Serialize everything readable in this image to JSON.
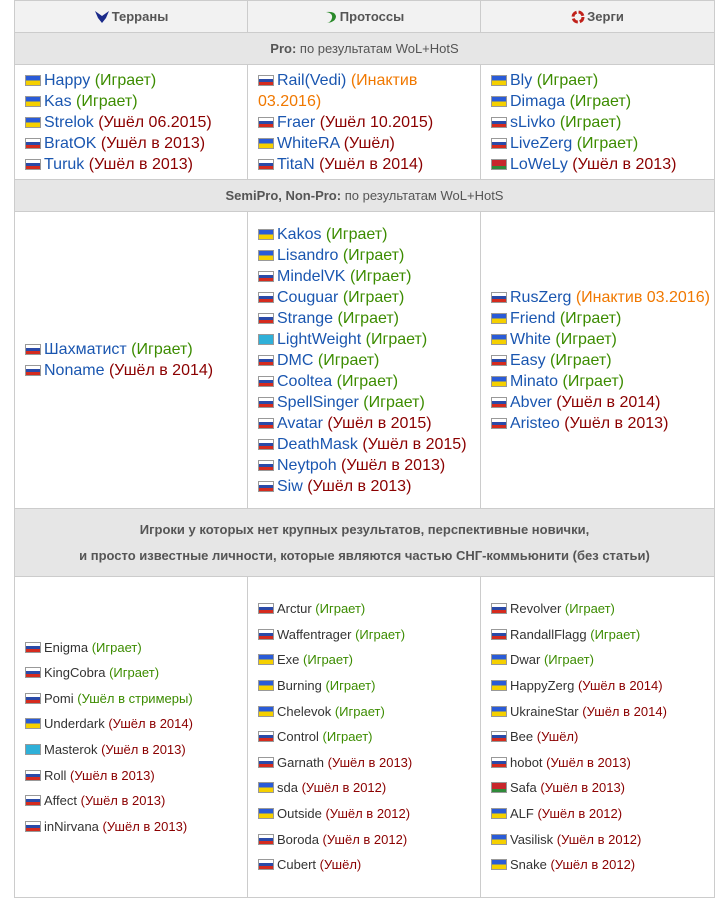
{
  "header": {
    "columns": [
      {
        "name": "Терраны"
      },
      {
        "name": "Протоссы"
      },
      {
        "name": "Зерги"
      }
    ]
  },
  "sections": [
    {
      "label": "Pro:",
      "title": "по результатам WoL+HotS",
      "columns": [
        [
          {
            "name": "Happy",
            "status": "(Играет)",
            "flag": "ua",
            "color": "#3c8c00"
          },
          {
            "name": "Kas",
            "status": "(Играет)",
            "flag": "ua",
            "color": "#3c8c00"
          },
          {
            "name": "Strelok",
            "status": "(Ушёл 06.2015)",
            "flag": "ua",
            "color": "#8b0000"
          },
          {
            "name": "BratOK",
            "status": "(Ушёл в 2013)",
            "flag": "ru",
            "color": "#8b0000"
          },
          {
            "name": "Turuk",
            "status": "(Ушёл в 2013)",
            "flag": "ru",
            "color": "#8b0000"
          }
        ],
        [
          {
            "name": "Rail(Vedi)",
            "status": "(Инактив 03.2016)",
            "flag": "ru",
            "color": "#f07800"
          },
          {
            "name": "Fraer",
            "status": "(Ушёл 10.2015)",
            "flag": "ru",
            "color": "#8b0000"
          },
          {
            "name": "WhiteRA",
            "status": "(Ушёл)",
            "flag": "ua",
            "color": "#8b0000"
          },
          {
            "name": "TitaN",
            "status": "(Ушёл в 2014)",
            "flag": "ru",
            "color": "#8b0000"
          }
        ],
        [
          {
            "name": "Bly",
            "status": "(Играет)",
            "flag": "ua",
            "color": "#3c8c00"
          },
          {
            "name": "Dimaga",
            "status": "(Играет)",
            "flag": "ua",
            "color": "#3c8c00"
          },
          {
            "name": "sLivko",
            "status": "(Играет)",
            "flag": "ru",
            "color": "#3c8c00"
          },
          {
            "name": "LiveZerg",
            "status": "(Играет)",
            "flag": "ru",
            "color": "#3c8c00"
          },
          {
            "name": "LoWeLy",
            "status": "(Ушёл в 2013)",
            "flag": "by",
            "color": "#8b0000"
          }
        ]
      ]
    },
    {
      "label": "SemiPro, Non-Pro:",
      "title": "по результатам WoL+HotS",
      "columns": [
        [
          {
            "name": "Шахматист",
            "status": "(Играет)",
            "flag": "ru",
            "color": "#3c8c00"
          },
          {
            "name": "Noname",
            "status": "(Ушёл в 2014)",
            "flag": "ru",
            "color": "#8b0000"
          }
        ],
        [
          {
            "name": "Kakos",
            "status": "(Играет)",
            "flag": "ua",
            "color": "#3c8c00"
          },
          {
            "name": "Lisandro",
            "status": "(Играет)",
            "flag": "ua",
            "color": "#3c8c00"
          },
          {
            "name": "MindelVK",
            "status": "(Играет)",
            "flag": "ru",
            "color": "#3c8c00"
          },
          {
            "name": "Couguar",
            "status": "(Играет)",
            "flag": "ru",
            "color": "#3c8c00"
          },
          {
            "name": "Strange",
            "status": "(Играет)",
            "flag": "ru",
            "color": "#3c8c00"
          },
          {
            "name": "LightWeight",
            "status": "(Играет)",
            "flag": "kz",
            "color": "#3c8c00"
          },
          {
            "name": "DMC",
            "status": "(Играет)",
            "flag": "ru",
            "color": "#3c8c00"
          },
          {
            "name": "Cooltea",
            "status": "(Играет)",
            "flag": "ru",
            "color": "#3c8c00"
          },
          {
            "name": "SpellSinger",
            "status": "(Играет)",
            "flag": "ru",
            "color": "#3c8c00"
          },
          {
            "name": "Avatar",
            "status": "(Ушёл в 2015)",
            "flag": "ru",
            "color": "#8b0000"
          },
          {
            "name": "DeathMask",
            "status": "(Ушёл в 2015)",
            "flag": "ru",
            "color": "#8b0000"
          },
          {
            "name": "Neytpoh",
            "status": "(Ушёл в 2013)",
            "flag": "ru",
            "color": "#8b0000"
          },
          {
            "name": "Siw",
            "status": "(Ушёл в 2013)",
            "flag": "ru",
            "color": "#8b0000"
          }
        ],
        [
          {
            "name": "RusZerg",
            "status": "(Инактив 03.2016)",
            "flag": "ru",
            "color": "#f07800"
          },
          {
            "name": "Friend",
            "status": "(Играет)",
            "flag": "ua",
            "color": "#3c8c00"
          },
          {
            "name": "White",
            "status": "(Играет)",
            "flag": "ua",
            "color": "#3c8c00"
          },
          {
            "name": "Easy",
            "status": "(Играет)",
            "flag": "ru",
            "color": "#3c8c00"
          },
          {
            "name": "Minato",
            "status": "(Играет)",
            "flag": "ua",
            "color": "#3c8c00"
          },
          {
            "name": "Abver",
            "status": "(Ушёл в 2014)",
            "flag": "ru",
            "color": "#8b0000"
          },
          {
            "name": "Aristeo",
            "status": "(Ушёл в 2013)",
            "flag": "ru",
            "color": "#8b0000"
          }
        ]
      ]
    },
    {
      "lines": [
        "Игроки у которых нет крупных результатов, перспективные новички,",
        "и просто известные личности, которые являются частью СНГ-коммьюнити  (без статьи)"
      ],
      "columns": [
        [
          {
            "name": "Enigma",
            "status": "(Играет)",
            "flag": "ru",
            "color": "#3c8c00"
          },
          {
            "name": "KingCobra",
            "status": "(Играет)",
            "flag": "ru",
            "color": "#3c8c00"
          },
          {
            "name": "Pomi",
            "status": "(Ушёл в стримеры)",
            "flag": "ru",
            "color": "#3c8c00"
          },
          {
            "name": "Underdark",
            "status": "(Ушёл в 2014)",
            "flag": "ua",
            "color": "#8b0000"
          },
          {
            "name": "Masterok",
            "status": "(Ушёл в 2013)",
            "flag": "kz",
            "color": "#8b0000"
          },
          {
            "name": "Roll",
            "status": "(Ушёл в 2013)",
            "flag": "ru",
            "color": "#8b0000"
          },
          {
            "name": "Affect",
            "status": "(Ушёл в 2013)",
            "flag": "ru",
            "color": "#8b0000"
          },
          {
            "name": "inNirvana",
            "status": "(Ушёл в 2013)",
            "flag": "ru",
            "color": "#8b0000"
          }
        ],
        [
          {
            "name": "Arctur",
            "status": "(Играет)",
            "flag": "ru",
            "color": "#3c8c00"
          },
          {
            "name": "Waffentrager",
            "status": "(Играет)",
            "flag": "ru",
            "color": "#3c8c00"
          },
          {
            "name": "Exe",
            "status": "(Играет)",
            "flag": "ua",
            "color": "#3c8c00"
          },
          {
            "name": "Burning",
            "status": "(Играет)",
            "flag": "ua",
            "color": "#3c8c00"
          },
          {
            "name": "Chelevok",
            "status": "(Играет)",
            "flag": "ua",
            "color": "#3c8c00"
          },
          {
            "name": "Control",
            "status": "(Играет)",
            "flag": "ru",
            "color": "#3c8c00"
          },
          {
            "name": "Garnath",
            "status": "(Ушёл в 2013)",
            "flag": "ru",
            "color": "#8b0000"
          },
          {
            "name": "sda",
            "status": "(Ушёл в 2012)",
            "flag": "ua",
            "color": "#8b0000"
          },
          {
            "name": "Outside",
            "status": "(Ушёл в 2012)",
            "flag": "ua",
            "color": "#8b0000"
          },
          {
            "name": "Boroda",
            "status": "(Ушёл в 2012)",
            "flag": "ru",
            "color": "#8b0000"
          },
          {
            "name": "Cubert",
            "status": "(Ушёл)",
            "flag": "ru",
            "color": "#8b0000"
          }
        ],
        [
          {
            "name": "Revolver",
            "status": "(Играет)",
            "flag": "ru",
            "color": "#3c8c00"
          },
          {
            "name": "RandallFlagg",
            "status": "(Играет)",
            "flag": "ru",
            "color": "#3c8c00"
          },
          {
            "name": "Dwar",
            "status": "(Играет)",
            "flag": "ua",
            "color": "#3c8c00"
          },
          {
            "name": "HappyZerg",
            "status": "(Ушёл в 2014)",
            "flag": "ua",
            "color": "#8b0000"
          },
          {
            "name": "UkraineStar",
            "status": "(Ушёл в 2014)",
            "flag": "ua",
            "color": "#8b0000"
          },
          {
            "name": "Bee",
            "status": "(Ушёл)",
            "flag": "ru",
            "color": "#8b0000"
          },
          {
            "name": "hobot",
            "status": "(Ушёл в 2013)",
            "flag": "ru",
            "color": "#8b0000"
          },
          {
            "name": "Safa",
            "status": "(Ушёл в 2013)",
            "flag": "by",
            "color": "#8b0000"
          },
          {
            "name": "ALF",
            "status": "(Ушёл в 2012)",
            "flag": "ua",
            "color": "#8b0000"
          },
          {
            "name": "Vasilisk",
            "status": "(Ушёл в 2012)",
            "flag": "ua",
            "color": "#8b0000"
          },
          {
            "name": "Snake",
            "status": "(Ушёл в 2012)",
            "flag": "ua",
            "color": "#8b0000"
          }
        ]
      ]
    }
  ]
}
